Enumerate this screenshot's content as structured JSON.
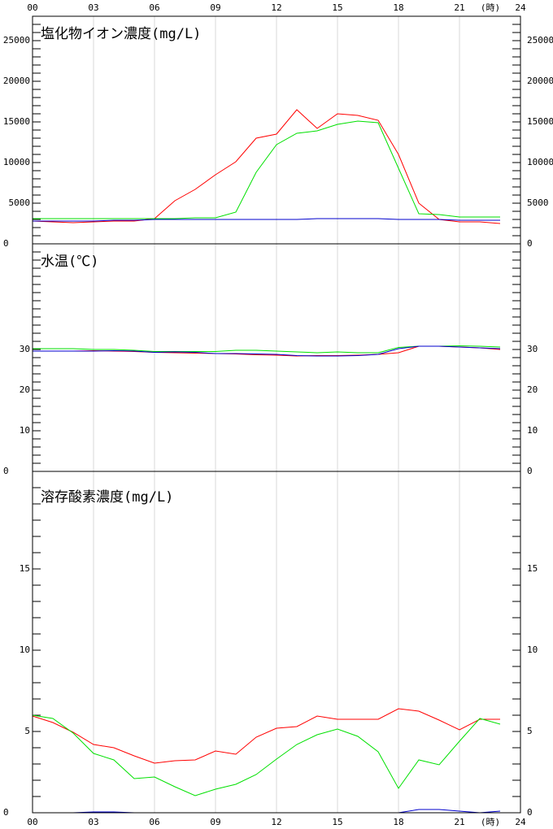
{
  "chart_data": [
    {
      "type": "line",
      "title": "塩化物イオン濃度(mg/L)",
      "xlabel": "(時)",
      "x": [
        0,
        1,
        2,
        3,
        4,
        5,
        6,
        7,
        8,
        9,
        10,
        11,
        12,
        13,
        14,
        15,
        16,
        17,
        18,
        19,
        20,
        21,
        22,
        23
      ],
      "xlim": [
        0,
        24
      ],
      "xticks": [
        {
          "value": 0,
          "label": "00"
        },
        {
          "value": 3,
          "label": "03"
        },
        {
          "value": 6,
          "label": "06"
        },
        {
          "value": 9,
          "label": "09"
        },
        12,
        15,
        18,
        21,
        24
      ],
      "ylim": [
        0,
        28000
      ],
      "yticks": [
        0,
        5000,
        10000,
        15000,
        20000,
        25000
      ],
      "minor_ytick_step": 1000,
      "grid": true,
      "series": [
        {
          "color": "#ff0000",
          "values": [
            2800,
            2700,
            2600,
            2700,
            2800,
            2800,
            3100,
            5300,
            6700,
            8500,
            10100,
            13000,
            13500,
            16500,
            14200,
            16000,
            15800,
            15200,
            11000,
            5000,
            3000,
            2700,
            2700,
            2500
          ]
        },
        {
          "color": "#00e000",
          "values": [
            3100,
            3100,
            3100,
            3100,
            3100,
            3100,
            3100,
            3100,
            3200,
            3200,
            3900,
            8800,
            12200,
            13600,
            13900,
            14700,
            15100,
            14900,
            9300,
            3700,
            3600,
            3300,
            3300,
            3300
          ]
        },
        {
          "color": "#0000cc",
          "values": [
            2800,
            2800,
            2800,
            2800,
            2900,
            2900,
            3000,
            3000,
            3000,
            3000,
            3000,
            3000,
            3000,
            3000,
            3100,
            3100,
            3100,
            3100,
            3000,
            3000,
            3000,
            2900,
            2900,
            2900
          ]
        }
      ]
    },
    {
      "type": "line",
      "title": "水温(℃)",
      "x": [
        0,
        1,
        2,
        3,
        4,
        5,
        6,
        7,
        8,
        9,
        10,
        11,
        12,
        13,
        14,
        15,
        16,
        17,
        18,
        19,
        20,
        21,
        22,
        23
      ],
      "xlim": [
        0,
        24
      ],
      "xticks": [
        {
          "value": 0,
          "label": "00"
        },
        {
          "value": 3,
          "label": "03"
        },
        {
          "value": 6,
          "label": "06"
        },
        {
          "value": 9,
          "label": "09"
        },
        12,
        15,
        18,
        21,
        24
      ],
      "ylim": [
        0,
        56
      ],
      "yticks": [
        0,
        10,
        20,
        30
      ],
      "minor_ytick_step": 2,
      "grid": true,
      "series": [
        {
          "color": "#ff0000",
          "values": [
            29.6,
            29.6,
            29.6,
            29.7,
            29.6,
            29.5,
            29.3,
            29.2,
            29.1,
            29.0,
            28.9,
            28.7,
            28.6,
            28.4,
            28.5,
            28.5,
            28.6,
            28.8,
            29.2,
            30.8,
            30.8,
            30.6,
            30.4,
            30.0
          ]
        },
        {
          "color": "#00e000",
          "values": [
            30.2,
            30.2,
            30.2,
            30.0,
            30.0,
            29.8,
            29.5,
            29.5,
            29.5,
            29.5,
            29.8,
            29.8,
            29.6,
            29.4,
            29.2,
            29.4,
            29.2,
            29.2,
            30.5,
            30.8,
            30.8,
            30.9,
            30.8,
            30.6
          ]
        },
        {
          "color": "#0000cc",
          "values": [
            29.6,
            29.6,
            29.6,
            29.6,
            29.7,
            29.6,
            29.3,
            29.4,
            29.3,
            29.0,
            29.0,
            28.9,
            28.8,
            28.5,
            28.4,
            28.4,
            28.5,
            28.8,
            30.2,
            30.8,
            30.8,
            30.6,
            30.4,
            30.2
          ]
        }
      ]
    },
    {
      "type": "line",
      "title": "溶存酸素濃度(mg/L)",
      "xlabel": "(時)",
      "x": [
        0,
        1,
        2,
        3,
        4,
        5,
        6,
        7,
        8,
        9,
        10,
        11,
        12,
        13,
        14,
        15,
        16,
        17,
        18,
        19,
        20,
        21,
        22,
        23
      ],
      "xlim": [
        0,
        24
      ],
      "xticks": [
        {
          "value": 0,
          "label": "00"
        },
        {
          "value": 3,
          "label": "03"
        },
        {
          "value": 6,
          "label": "06"
        },
        {
          "value": 9,
          "label": "09"
        },
        12,
        15,
        18,
        21,
        24
      ],
      "ylim": [
        0,
        21
      ],
      "yticks": [
        0,
        5,
        10,
        15
      ],
      "minor_ytick_step": 1,
      "grid": true,
      "series": [
        {
          "color": "#ff0000",
          "values": [
            5.95,
            5.55,
            4.95,
            4.2,
            4.0,
            3.5,
            3.05,
            3.2,
            3.25,
            3.8,
            3.6,
            4.65,
            5.2,
            5.3,
            5.95,
            5.75,
            5.75,
            5.75,
            6.4,
            6.25,
            5.7,
            5.1,
            5.75,
            5.75
          ]
        },
        {
          "color": "#00e000",
          "values": [
            6.0,
            5.8,
            4.9,
            3.65,
            3.25,
            2.1,
            2.2,
            1.6,
            1.05,
            1.45,
            1.75,
            2.35,
            3.3,
            4.2,
            4.8,
            5.15,
            4.7,
            3.75,
            1.5,
            3.25,
            2.95,
            4.4,
            5.8,
            5.45
          ]
        },
        {
          "color": "#0000cc",
          "values": [
            0,
            0,
            0,
            0.05,
            0.05,
            0,
            0,
            0,
            0,
            0,
            0,
            0,
            0,
            0,
            0,
            0,
            0,
            0,
            0,
            0.2,
            0.2,
            0.1,
            0,
            0.1
          ]
        }
      ]
    }
  ]
}
